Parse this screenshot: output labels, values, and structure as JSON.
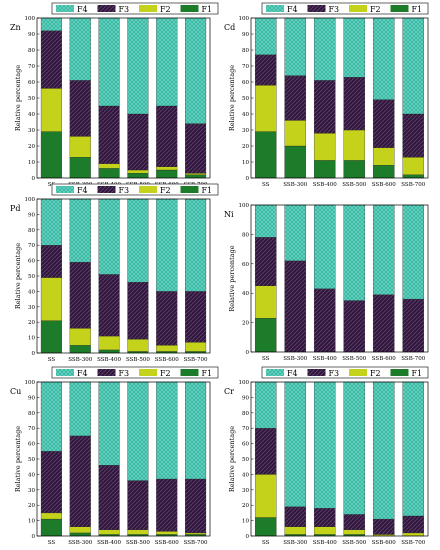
{
  "legend_labels": {
    "F4": "F4",
    "F3": "F3",
    "F2": "F2",
    "F1": "F1"
  },
  "colors": {
    "F4": "#35b9a4",
    "F3": "#2a1838",
    "F2": "#c4d21c",
    "F1": "#1d7c2a"
  },
  "ylabel": "Relative percentage",
  "chart_data": [
    {
      "type": "bar",
      "stacked": true,
      "panel": "Zn",
      "ylim": [
        0,
        100
      ],
      "yticks": [
        0,
        10,
        20,
        30,
        40,
        50,
        60,
        70,
        80,
        90,
        100
      ],
      "categories": [
        "SS",
        "SSB-300",
        "SSB-400",
        "SSB-500",
        "SSB-600",
        "SSB-700"
      ],
      "series": [
        {
          "name": "F1",
          "values": [
            29,
            13,
            6,
            3,
            5,
            2
          ]
        },
        {
          "name": "F2",
          "values": [
            27,
            13,
            3,
            2,
            2,
            1
          ]
        },
        {
          "name": "F3",
          "values": [
            36,
            35,
            36,
            35,
            38,
            31
          ]
        },
        {
          "name": "F4",
          "values": [
            8,
            39,
            55,
            60,
            55,
            66
          ]
        }
      ]
    },
    {
      "type": "bar",
      "stacked": true,
      "panel": "Cd",
      "ylim": [
        0,
        100
      ],
      "yticks": [
        0,
        10,
        20,
        30,
        40,
        50,
        60,
        70,
        80,
        90,
        100
      ],
      "categories": [
        "SS",
        "SSB-300",
        "SSB-400",
        "SSB-500",
        "SSB-600",
        "SSB-700"
      ],
      "series": [
        {
          "name": "F1",
          "values": [
            29,
            20,
            11,
            11,
            8,
            2
          ]
        },
        {
          "name": "F2",
          "values": [
            29,
            16,
            17,
            19,
            11,
            11
          ]
        },
        {
          "name": "F3",
          "values": [
            19,
            28,
            33,
            33,
            30,
            27
          ]
        },
        {
          "name": "F4",
          "values": [
            23,
            36,
            39,
            37,
            51,
            60
          ]
        }
      ]
    },
    {
      "type": "bar",
      "stacked": true,
      "panel": "Pd",
      "ylim": [
        0,
        100
      ],
      "yticks": [
        0,
        10,
        20,
        30,
        40,
        50,
        60,
        70,
        80,
        90,
        100
      ],
      "categories": [
        "SS",
        "SSB-300",
        "SSB-400",
        "SSB-500",
        "SSB-600",
        "SSB-700"
      ],
      "series": [
        {
          "name": "F1",
          "values": [
            21,
            5,
            2,
            1,
            1,
            1
          ]
        },
        {
          "name": "F2",
          "values": [
            28,
            11,
            9,
            8,
            4,
            6
          ]
        },
        {
          "name": "F3",
          "values": [
            21,
            43,
            40,
            37,
            35,
            33
          ]
        },
        {
          "name": "F4",
          "values": [
            30,
            41,
            49,
            54,
            60,
            60
          ]
        }
      ]
    },
    {
      "type": "bar",
      "stacked": true,
      "panel": "Ni",
      "ylim": [
        0,
        100
      ],
      "yticks": [
        0,
        20,
        40,
        60,
        80,
        100
      ],
      "categories": [
        "SS",
        "SSB-300",
        "SSB-400",
        "SSB-500",
        "SSB-600",
        "SSB-700"
      ],
      "series": [
        {
          "name": "F1",
          "values": [
            23,
            0,
            0,
            0,
            0,
            0
          ]
        },
        {
          "name": "F2",
          "values": [
            22,
            0,
            0,
            0,
            0,
            0
          ]
        },
        {
          "name": "F3",
          "values": [
            33,
            62,
            43,
            35,
            39,
            36
          ]
        },
        {
          "name": "F4",
          "values": [
            22,
            38,
            57,
            65,
            61,
            64
          ]
        }
      ]
    },
    {
      "type": "bar",
      "stacked": true,
      "panel": "Cu",
      "ylim": [
        0,
        100
      ],
      "yticks": [
        0,
        10,
        20,
        30,
        40,
        50,
        60,
        70,
        80,
        90,
        100
      ],
      "categories": [
        "SS",
        "SSB-300",
        "SSB-400",
        "SSB-500",
        "SSB-600",
        "SSB-700"
      ],
      "series": [
        {
          "name": "F1",
          "values": [
            11,
            2,
            1,
            1,
            1,
            1
          ]
        },
        {
          "name": "F2",
          "values": [
            4,
            4,
            3,
            3,
            2,
            1
          ]
        },
        {
          "name": "F3",
          "values": [
            40,
            59,
            42,
            32,
            34,
            35
          ]
        },
        {
          "name": "F4",
          "values": [
            45,
            35,
            54,
            64,
            63,
            63
          ]
        }
      ]
    },
    {
      "type": "bar",
      "stacked": true,
      "panel": "Cr",
      "ylim": [
        0,
        100
      ],
      "yticks": [
        0,
        10,
        20,
        30,
        40,
        50,
        60,
        70,
        80,
        90,
        100
      ],
      "categories": [
        "SS",
        "SSB-300",
        "SSB-400",
        "SSB-500",
        "SSB-600",
        "SSB-700"
      ],
      "series": [
        {
          "name": "F1",
          "values": [
            12,
            1,
            1,
            1,
            0,
            0
          ]
        },
        {
          "name": "F2",
          "values": [
            28,
            5,
            5,
            3,
            1,
            2
          ]
        },
        {
          "name": "F3",
          "values": [
            30,
            13,
            12,
            10,
            10,
            11
          ]
        },
        {
          "name": "F4",
          "values": [
            30,
            81,
            82,
            86,
            89,
            87
          ]
        }
      ]
    }
  ]
}
